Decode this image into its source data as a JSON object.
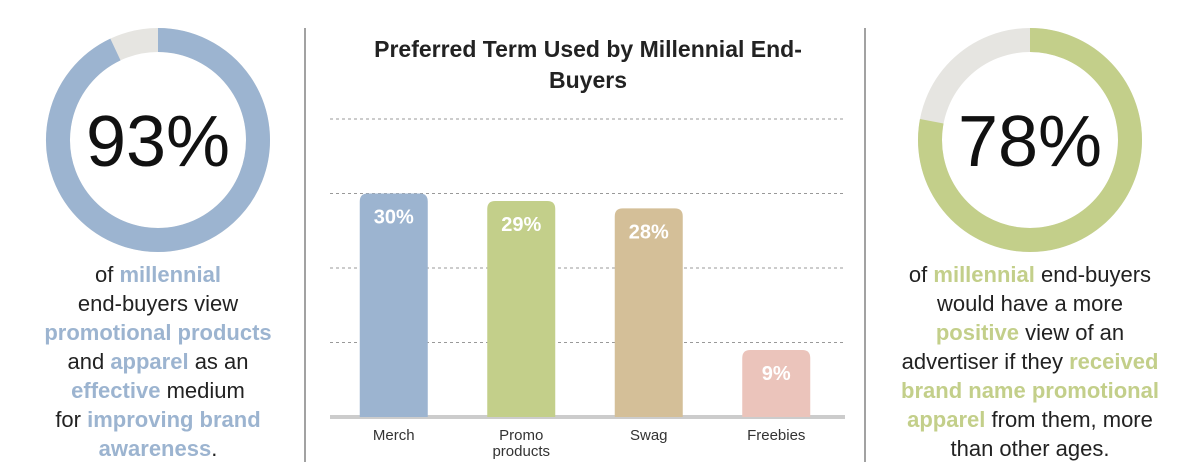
{
  "chart_data": [
    {
      "type": "donut",
      "values": [
        93
      ],
      "value_labels": [
        "93%"
      ],
      "color": "#9cb4d0",
      "track_color": "#e6e5e1",
      "description": [
        [
          {
            "text": "of "
          },
          {
            "text": "millennial",
            "emphasis": true
          }
        ],
        [
          {
            "text": "end-buyers view"
          }
        ],
        [
          {
            "text": "promotional products",
            "emphasis": true
          }
        ],
        [
          {
            "text": "and "
          },
          {
            "text": "apparel",
            "emphasis": true
          },
          {
            "text": " as an"
          }
        ],
        [
          {
            "text": "effective",
            "emphasis": true
          },
          {
            "text": " medium"
          }
        ],
        [
          {
            "text": "for "
          },
          {
            "text": "improving brand",
            "emphasis": true
          }
        ],
        [
          {
            "text": "awareness",
            "emphasis": true
          },
          {
            "text": "."
          }
        ]
      ]
    },
    {
      "type": "bar",
      "title": "Preferred Term Used by Millennial End-Buyers",
      "categories": [
        "Merch",
        "Promo products",
        "Swag",
        "Freebies"
      ],
      "values": [
        30,
        29,
        28,
        9
      ],
      "value_labels": [
        "30%",
        "29%",
        "28%",
        "9%"
      ],
      "colors": [
        "#9cb4d0",
        "#c3cf8a",
        "#d4bf98",
        "#ebc4bb"
      ],
      "ylim": [
        0,
        40
      ],
      "yticks": [
        0,
        10,
        20,
        30,
        40
      ],
      "grid": true
    },
    {
      "type": "donut",
      "values": [
        78
      ],
      "value_labels": [
        "78%"
      ],
      "color": "#c3cf8a",
      "track_color": "#e6e5e1",
      "description": [
        [
          {
            "text": "of "
          },
          {
            "text": "millennial",
            "emphasis": true
          },
          {
            "text": " end-buyers"
          }
        ],
        [
          {
            "text": "would have a more"
          }
        ],
        [
          {
            "text": "positive",
            "emphasis": true
          },
          {
            "text": " view of an"
          }
        ],
        [
          {
            "text": "advertiser if they "
          },
          {
            "text": "received",
            "emphasis": true
          }
        ],
        [
          {
            "text": "brand name promotional",
            "emphasis": true
          }
        ],
        [
          {
            "text": "apparel",
            "emphasis": true
          },
          {
            "text": " from them, more"
          }
        ],
        [
          {
            "text": "than other ages."
          }
        ]
      ]
    }
  ]
}
